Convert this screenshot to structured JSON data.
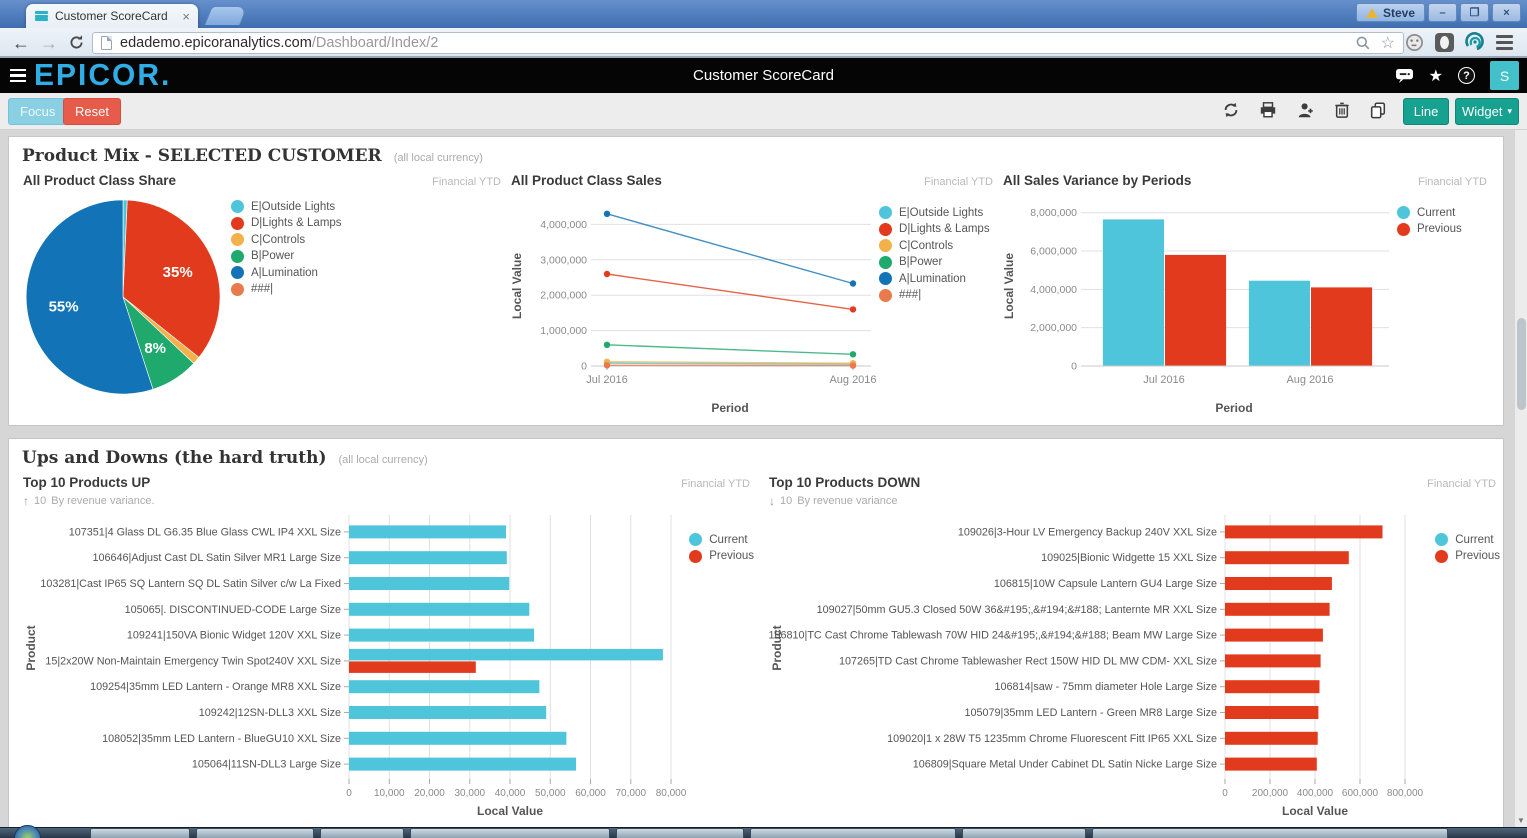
{
  "browser": {
    "tab": {
      "title": "Customer ScoreCard",
      "close": "×"
    },
    "url": {
      "domain": "edademo.epicoranalytics.com",
      "path": "/Dashboard/Index/2"
    },
    "profile": "Steve",
    "window_controls": [
      "–",
      "❐",
      "×"
    ],
    "icon_names": [
      "back-icon",
      "forward-icon",
      "reload-icon",
      "page-icon",
      "zoom-icon",
      "bookmark-star-icon",
      "emoji-extension-icon",
      "dark-extension-icon",
      "epicor-extension-icon",
      "menu-icon"
    ]
  },
  "app": {
    "logo": "EPICOR.",
    "title": "Customer ScoreCard",
    "avatar": "S",
    "header_icon_names": [
      "chat-icon",
      "star-icon",
      "help-icon"
    ],
    "toolbar": {
      "focus": "Focus",
      "reset": "Reset",
      "line": "Line",
      "widget": "Widget",
      "widget_caret": "▾",
      "icon_names": [
        "refresh-icon",
        "print-icon",
        "add-user-icon",
        "trash-icon",
        "copy-icon"
      ]
    }
  },
  "sections": [
    {
      "title": "Product Mix - SELECTED CUSTOMER",
      "subtitle": "(all local currency)"
    },
    {
      "title": "Ups and Downs (the hard truth)",
      "subtitle": "(all local currency)"
    }
  ],
  "chart_data": [
    {
      "type": "pie",
      "title": "All Product Class Share",
      "badge": "Financial YTD",
      "slices": [
        {
          "label": "E|Outside Lights",
          "color": "#4ec5da",
          "value": 0.7,
          "pct_label": ""
        },
        {
          "label": "D|Lights & Lamps",
          "color": "#e23a1c",
          "value": 35,
          "pct_label": "35%"
        },
        {
          "label": "C|Controls",
          "color": "#f3b14c",
          "value": 1.3,
          "pct_label": ""
        },
        {
          "label": "B|Power",
          "color": "#1fa96d",
          "value": 8,
          "pct_label": "8%"
        },
        {
          "label": "A|Lumination",
          "color": "#1273b6",
          "value": 55,
          "pct_label": "55%"
        },
        {
          "label": "###|",
          "color": "#e87a4e",
          "value": 0,
          "pct_label": ""
        }
      ]
    },
    {
      "type": "line",
      "title": "All Product Class Sales",
      "badge": "Financial YTD",
      "xlabel": "Period",
      "ylabel": "Local Value",
      "x": [
        "Jul 2016",
        "Aug 2016"
      ],
      "ymax": 4000000,
      "ystep": 1000000,
      "series": [
        {
          "name": "E|Outside Lights",
          "color": "#4ec5da",
          "values": [
            80000,
            50000
          ]
        },
        {
          "name": "D|Lights & Lamps",
          "color": "#e23a1c",
          "values": [
            2600000,
            1600000
          ]
        },
        {
          "name": "C|Controls",
          "color": "#f3b14c",
          "values": [
            120000,
            80000
          ]
        },
        {
          "name": "B|Power",
          "color": "#1fa96d",
          "values": [
            600000,
            330000
          ]
        },
        {
          "name": "A|Lumination",
          "color": "#1273b6",
          "values": [
            4300000,
            2330000
          ]
        },
        {
          "name": "###|",
          "color": "#e87a4e",
          "values": [
            20000,
            10000
          ]
        }
      ]
    },
    {
      "type": "bar",
      "title": "All Sales Variance by Periods",
      "badge": "Financial YTD",
      "xlabel": "Period",
      "ylabel": "Local Value",
      "categories": [
        "Jul 2016",
        "Aug 2016"
      ],
      "ymax": 8000000,
      "ystep": 2000000,
      "series": [
        {
          "name": "Current",
          "color": "#4ec5da",
          "values": [
            7650000,
            4450000
          ]
        },
        {
          "name": "Previous",
          "color": "#e23a1c",
          "values": [
            5800000,
            4100000
          ]
        }
      ]
    },
    {
      "type": "hbar",
      "title": "Top 10 Products UP",
      "badge": "Financial YTD",
      "subtitle": {
        "arrow": "↑",
        "num": "10",
        "text": "By revenue variance."
      },
      "xlabel": "Local Value",
      "ylabel": "Product",
      "xmax": 80000,
      "xstep": 10000,
      "legend": [
        {
          "name": "Current",
          "color": "#4ec5da"
        },
        {
          "name": "Previous",
          "color": "#e23a1c"
        }
      ],
      "rows": [
        {
          "label": "107351|4 Glass DL G6.35 Blue Glass CWL IP4 XXL Size",
          "current": 39000,
          "previous": 0
        },
        {
          "label": "106646|Adjust Cast DL Satin Silver MR1 Large Size",
          "current": 39200,
          "previous": 0
        },
        {
          "label": "103281|Cast IP65 SQ Lantern SQ DL Satin Silver c/w La Fixed",
          "current": 39800,
          "previous": 0
        },
        {
          "label": "105065|. DISCONTINUED-CODE Large Size",
          "current": 44800,
          "previous": 0
        },
        {
          "label": "109241|150VA Bionic Widget 120V XXL Size",
          "current": 46000,
          "previous": 0
        },
        {
          "label": "15|2x20W Non-Maintain Emergency Twin Spot240V XXL Size",
          "current": 78000,
          "previous": 31500
        },
        {
          "label": "109254|35mm LED Lantern - Orange MR8 XXL Size",
          "current": 47300,
          "previous": 0
        },
        {
          "label": "109242|12SN-DLL3 XXL Size",
          "current": 49000,
          "previous": 0
        },
        {
          "label": "108052|35mm LED Lantern - BlueGU10 XXL Size",
          "current": 54000,
          "previous": 0
        },
        {
          "label": "105064|11SN-DLL3 Large Size",
          "current": 56400,
          "previous": 0
        }
      ]
    },
    {
      "type": "hbar",
      "title": "Top 10 Products DOWN",
      "badge": "Financial YTD",
      "subtitle": {
        "arrow": "↓",
        "num": "10",
        "text": "By revenue variance"
      },
      "xlabel": "Local Value",
      "ylabel": "Product",
      "xmax": 800000,
      "xstep": 200000,
      "legend": [
        {
          "name": "Current",
          "color": "#4ec5da"
        },
        {
          "name": "Previous",
          "color": "#e23a1c"
        }
      ],
      "rows": [
        {
          "label": "109026|3-Hour LV Emergency Backup 240V XXL Size",
          "current": 0,
          "previous": 700000
        },
        {
          "label": "109025|Bionic Widgette 15 XXL Size",
          "current": 0,
          "previous": 550000
        },
        {
          "label": "106815|10W Capsule Lantern GU4 Large Size",
          "current": 0,
          "previous": 475000
        },
        {
          "label": "109027|50mm GU5.3 Closed 50W 36&#195;‚&#194;&#188; Lanternte MR XXL Size",
          "current": 0,
          "previous": 465000
        },
        {
          "label": "106810|TC Cast Chrome Tablewash 70W HID 24&#195;‚&#194;&#188; Beam MW Large Size",
          "current": 0,
          "previous": 435000
        },
        {
          "label": "107265|TD Cast Chrome Tablewasher Rect 150W HID DL MW CDM- XXL Size",
          "current": 0,
          "previous": 425000
        },
        {
          "label": "106814|saw - 75mm diameter Hole Large Size",
          "current": 0,
          "previous": 420000
        },
        {
          "label": "105079|35mm LED Lantern - Green MR8 Large Size",
          "current": 0,
          "previous": 415000
        },
        {
          "label": "109020|1 x 28W T5 1235mm Chrome Fluorescent Fitt IP65 XXL Size",
          "current": 0,
          "previous": 412000
        },
        {
          "label": "106809|Square Metal Under Cabinet DL Satin Nicke Large Size",
          "current": 0,
          "previous": 408000
        }
      ]
    }
  ]
}
